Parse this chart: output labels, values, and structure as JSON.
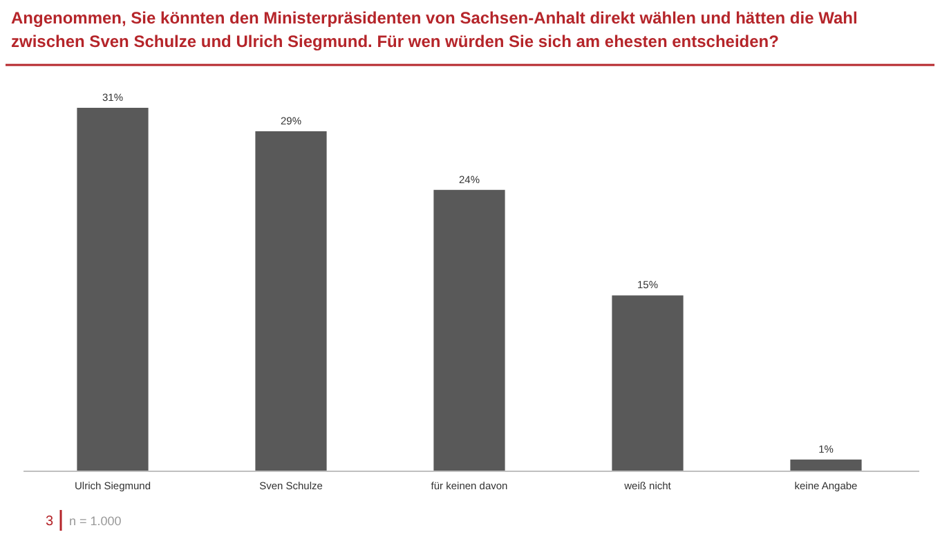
{
  "chart_data": {
    "type": "bar",
    "title": "Angenommen, Sie könnten den Ministerpräsidenten von Sachsen-Anhalt direkt wählen und hätten die Wahl zwischen Sven Schulze und Ulrich Siegmund. Für wen würden Sie sich am ehesten entscheiden?",
    "categories": [
      "Ulrich Siegmund",
      "Sven Schulze",
      "für keinen davon",
      "weiß nicht",
      "keine Angabe"
    ],
    "values": [
      31,
      29,
      24,
      15,
      1
    ],
    "value_labels": [
      "31%",
      "29%",
      "24%",
      "15%",
      "1%"
    ],
    "color": "#595959",
    "annotations": [
      "3",
      "n = 1.000"
    ]
  }
}
